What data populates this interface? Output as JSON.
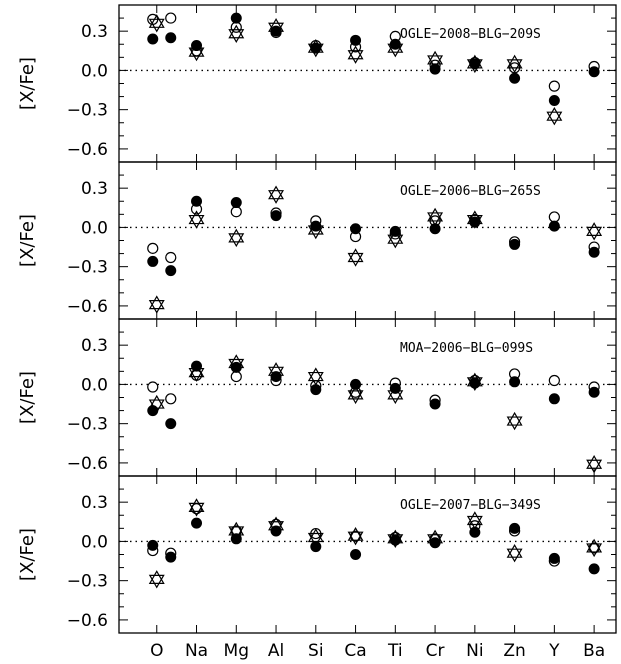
{
  "chart_data": {
    "type": "scatter",
    "categories": [
      "O",
      "Na",
      "Mg",
      "Al",
      "Si",
      "Ca",
      "Ti",
      "Cr",
      "Ni",
      "Zn",
      "Y",
      "Ba"
    ],
    "ylabel": "[X/Fe]",
    "ylim": [
      -0.7,
      0.5
    ],
    "yticks": [
      0.3,
      0.0,
      -0.3,
      -0.6
    ],
    "ytick_labels": [
      "0.3",
      "0.0",
      "−0.3",
      "−0.6"
    ],
    "reference_line": 0.0,
    "marker_legend": {
      "filled_circle": "solid black circle",
      "open_circle": "open circle",
      "star": "six-pointed star"
    },
    "panels": [
      {
        "title": "OGLE−2008−BLG−209S",
        "filled": [
          [
            "O",
            0.24
          ],
          [
            "O",
            0.25
          ],
          [
            "Na",
            0.19
          ],
          [
            "Mg",
            0.4
          ],
          [
            "Al",
            0.3
          ],
          [
            "Si",
            0.17
          ],
          [
            "Ca",
            0.23
          ],
          [
            "Ti",
            0.2
          ],
          [
            "Cr",
            0.01
          ],
          [
            "Ni",
            0.05
          ],
          [
            "Zn",
            -0.06
          ],
          [
            "Y",
            -0.23
          ],
          [
            "Ba",
            -0.01
          ]
        ],
        "open": [
          [
            "O",
            0.39
          ],
          [
            "O",
            0.4
          ],
          [
            "Na",
            0.15
          ],
          [
            "Mg",
            0.33
          ],
          [
            "Al",
            0.29
          ],
          [
            "Si",
            0.19
          ],
          [
            "Ca",
            0.18
          ],
          [
            "Ti",
            0.26
          ],
          [
            "Cr",
            0.04
          ],
          [
            "Ni",
            0.06
          ],
          [
            "Zn",
            0.02
          ],
          [
            "Y",
            -0.12
          ],
          [
            "Ba",
            0.03
          ]
        ],
        "star": [
          [
            "O",
            0.36
          ],
          [
            "Na",
            0.14
          ],
          [
            "Mg",
            0.28
          ],
          [
            "Al",
            0.33
          ],
          [
            "Si",
            0.17
          ],
          [
            "Ca",
            0.12
          ],
          [
            "Ti",
            0.17
          ],
          [
            "Cr",
            0.08
          ],
          [
            "Ni",
            0.05
          ],
          [
            "Zn",
            0.05
          ],
          [
            "Y",
            -0.35
          ]
        ]
      },
      {
        "title": "OGLE−2006−BLG−265S",
        "filled": [
          [
            "O",
            -0.26
          ],
          [
            "O",
            -0.33
          ],
          [
            "Na",
            0.2
          ],
          [
            "Mg",
            0.19
          ],
          [
            "Al",
            0.09
          ],
          [
            "Si",
            0.01
          ],
          [
            "Ca",
            -0.01
          ],
          [
            "Ti",
            -0.03
          ],
          [
            "Cr",
            -0.01
          ],
          [
            "Ni",
            0.04
          ],
          [
            "Zn",
            -0.13
          ],
          [
            "Y",
            0.01
          ],
          [
            "Ba",
            -0.19
          ]
        ],
        "open": [
          [
            "O",
            -0.16
          ],
          [
            "O",
            -0.23
          ],
          [
            "Na",
            0.14
          ],
          [
            "Mg",
            0.12
          ],
          [
            "Al",
            0.11
          ],
          [
            "Si",
            0.05
          ],
          [
            "Ca",
            -0.07
          ],
          [
            "Ti",
            -0.05
          ],
          [
            "Cr",
            0.05
          ],
          [
            "Ni",
            0.06
          ],
          [
            "Zn",
            -0.11
          ],
          [
            "Y",
            0.08
          ],
          [
            "Ba",
            -0.15
          ]
        ],
        "star": [
          [
            "O",
            -0.59
          ],
          [
            "Na",
            0.06
          ],
          [
            "Mg",
            -0.08
          ],
          [
            "Al",
            0.25
          ],
          [
            "Si",
            -0.02
          ],
          [
            "Ca",
            -0.23
          ],
          [
            "Ti",
            -0.09
          ],
          [
            "Cr",
            0.08
          ],
          [
            "Ni",
            0.06
          ],
          [
            "Ba",
            -0.03
          ]
        ]
      },
      {
        "title": "MOA−2006−BLG−099S",
        "filled": [
          [
            "O",
            -0.2
          ],
          [
            "O",
            -0.3
          ],
          [
            "Na",
            0.14
          ],
          [
            "Mg",
            0.13
          ],
          [
            "Al",
            0.06
          ],
          [
            "Si",
            -0.04
          ],
          [
            "Ca",
            0.0
          ],
          [
            "Ti",
            -0.03
          ],
          [
            "Cr",
            -0.15
          ],
          [
            "Ni",
            0.01
          ],
          [
            "Zn",
            0.02
          ],
          [
            "Y",
            -0.11
          ],
          [
            "Ba",
            -0.06
          ]
        ],
        "open": [
          [
            "O",
            -0.02
          ],
          [
            "O",
            -0.11
          ],
          [
            "Na",
            0.07
          ],
          [
            "Mg",
            0.06
          ],
          [
            "Al",
            0.03
          ],
          [
            "Si",
            -0.01
          ],
          [
            "Ca",
            -0.06
          ],
          [
            "Ti",
            0.01
          ],
          [
            "Cr",
            -0.12
          ],
          [
            "Ni",
            0.03
          ],
          [
            "Zn",
            0.08
          ],
          [
            "Y",
            0.03
          ],
          [
            "Ba",
            -0.02
          ]
        ],
        "star": [
          [
            "O",
            -0.15
          ],
          [
            "Na",
            0.09
          ],
          [
            "Mg",
            0.16
          ],
          [
            "Al",
            0.1
          ],
          [
            "Si",
            0.06
          ],
          [
            "Ca",
            -0.08
          ],
          [
            "Ti",
            -0.08
          ],
          [
            "Ni",
            0.02
          ],
          [
            "Zn",
            -0.28
          ],
          [
            "Ba",
            -0.61
          ]
        ]
      },
      {
        "title": "OGLE−2007−BLG−349S",
        "filled": [
          [
            "O",
            -0.03
          ],
          [
            "O",
            -0.12
          ],
          [
            "Na",
            0.14
          ],
          [
            "Mg",
            0.02
          ],
          [
            "Al",
            0.08
          ],
          [
            "Si",
            -0.04
          ],
          [
            "Ca",
            -0.1
          ],
          [
            "Ti",
            0.01
          ],
          [
            "Cr",
            -0.01
          ],
          [
            "Ni",
            0.07
          ],
          [
            "Zn",
            0.1
          ],
          [
            "Y",
            -0.13
          ],
          [
            "Ba",
            -0.21
          ]
        ],
        "open": [
          [
            "O",
            -0.07
          ],
          [
            "O",
            -0.09
          ],
          [
            "Na",
            0.25
          ],
          [
            "Mg",
            0.08
          ],
          [
            "Al",
            0.13
          ],
          [
            "Si",
            0.06
          ],
          [
            "Ca",
            0.04
          ],
          [
            "Ti",
            0.03
          ],
          [
            "Cr",
            0.02
          ],
          [
            "Ni",
            0.12
          ],
          [
            "Zn",
            0.08
          ],
          [
            "Y",
            -0.15
          ],
          [
            "Ba",
            -0.05
          ]
        ],
        "star": [
          [
            "O",
            -0.29
          ],
          [
            "Na",
            0.26
          ],
          [
            "Mg",
            0.08
          ],
          [
            "Al",
            0.12
          ],
          [
            "Si",
            0.03
          ],
          [
            "Ca",
            0.04
          ],
          [
            "Ti",
            0.02
          ],
          [
            "Cr",
            0.02
          ],
          [
            "Ni",
            0.16
          ],
          [
            "Zn",
            -0.09
          ],
          [
            "Ba",
            -0.05
          ]
        ]
      }
    ]
  }
}
